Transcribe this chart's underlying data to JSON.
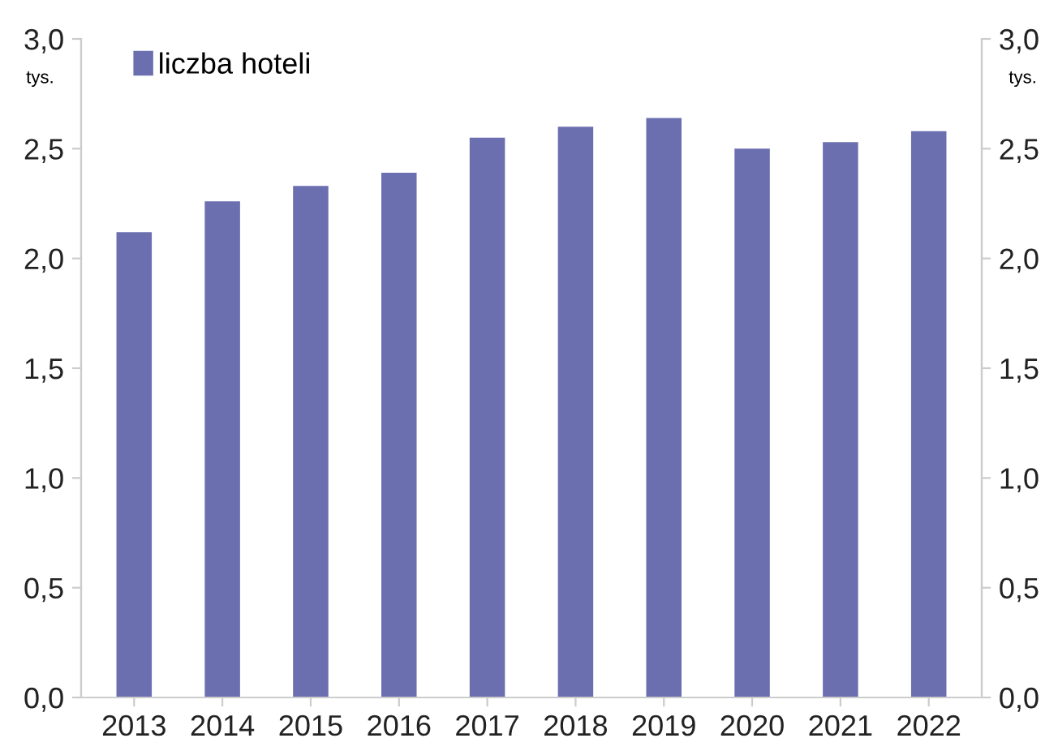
{
  "chart_data": {
    "type": "bar",
    "categories": [
      "2013",
      "2014",
      "2015",
      "2016",
      "2017",
      "2018",
      "2019",
      "2020",
      "2021",
      "2022"
    ],
    "series": [
      {
        "name": "liczba hoteli",
        "color": "#6b6fb0",
        "values": [
          2.12,
          2.26,
          2.33,
          2.39,
          2.55,
          2.6,
          2.64,
          2.5,
          2.53,
          2.58
        ]
      }
    ],
    "ylabel": "tys.",
    "y2label": "tys.",
    "ylim": [
      0,
      3
    ],
    "yticks": [
      {
        "value": 0,
        "label": "0,0"
      },
      {
        "value": 0.5,
        "label": "0,5"
      },
      {
        "value": 1,
        "label": "1,0"
      },
      {
        "value": 1.5,
        "label": "1,5"
      },
      {
        "value": 2,
        "label": "2,0"
      },
      {
        "value": 2.5,
        "label": "2,5"
      },
      {
        "value": 3,
        "label": "3,0"
      }
    ],
    "y2lim": [
      0,
      3
    ],
    "y2ticks": [
      {
        "value": 0,
        "label": "0,0"
      },
      {
        "value": 0.5,
        "label": "0,5"
      },
      {
        "value": 1,
        "label": "1,0"
      },
      {
        "value": 1.5,
        "label": "1,5"
      },
      {
        "value": 2,
        "label": "2,0"
      },
      {
        "value": 2.5,
        "label": "2,5"
      },
      {
        "value": 3,
        "label": "3,0"
      }
    ],
    "grid": false,
    "legend": "top left"
  }
}
